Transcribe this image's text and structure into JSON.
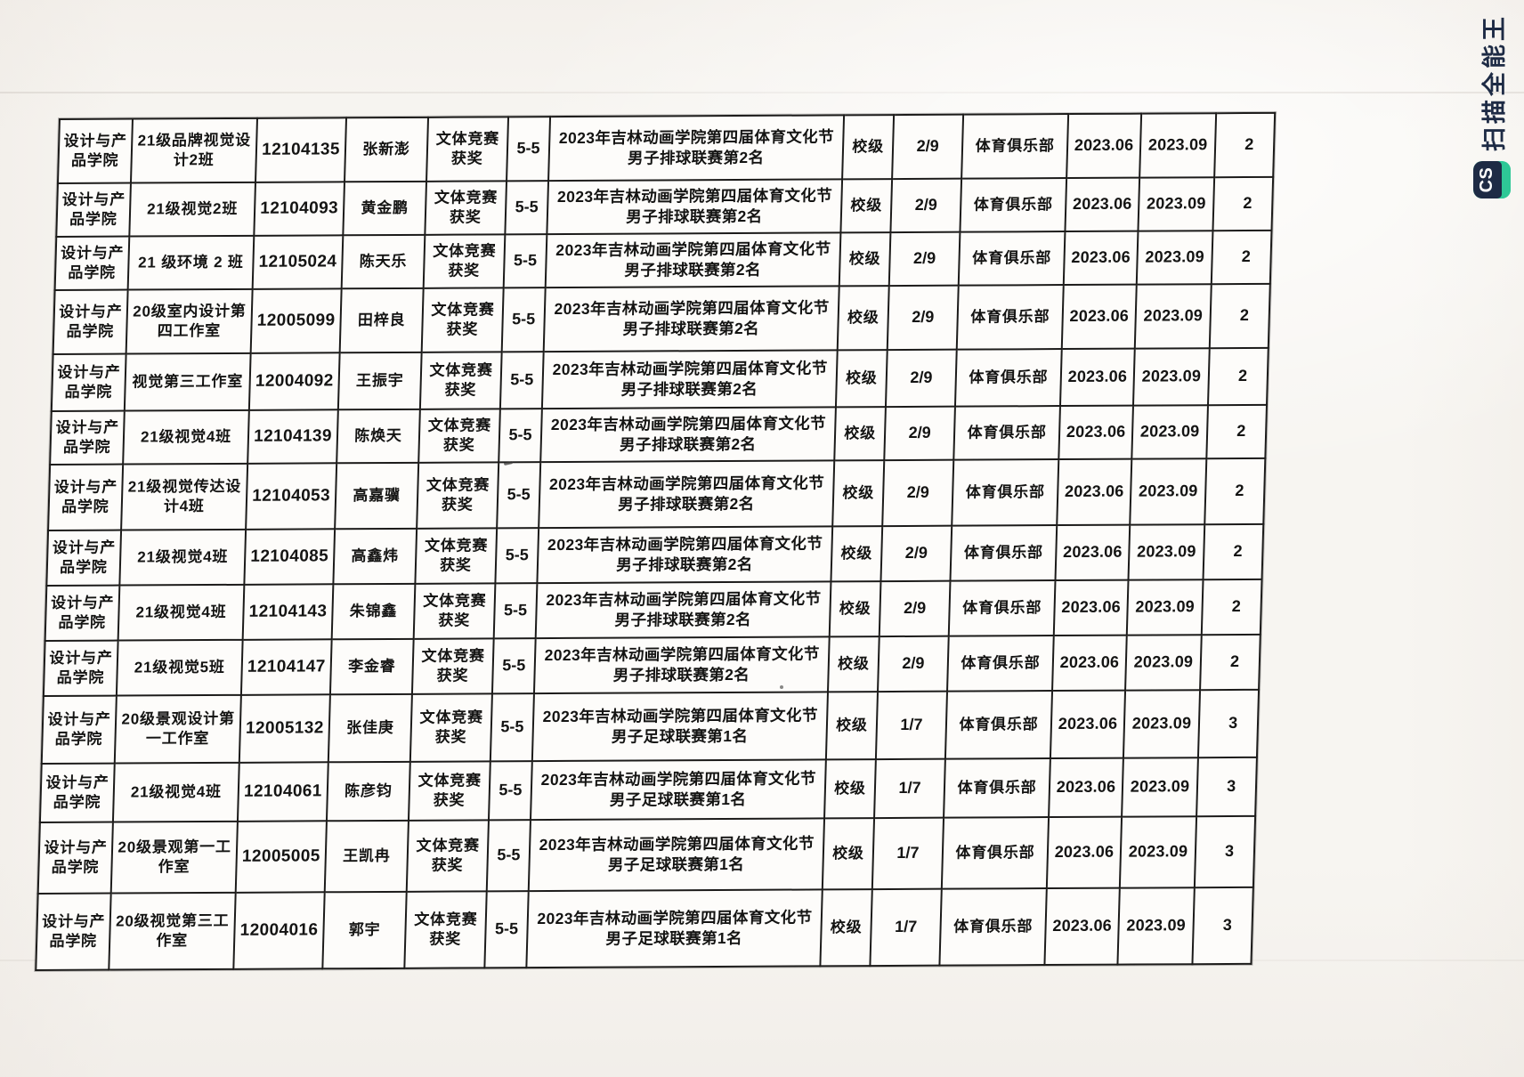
{
  "watermark": {
    "badge_text": "CS",
    "label": "扫描全能王",
    "badge_bg": "#1e2b45",
    "accent_color": "#2ec896",
    "label_color": "#1e2b45"
  },
  "table": {
    "field_order": [
      "college",
      "class_name",
      "student_id",
      "name",
      "award_type",
      "code",
      "award_title",
      "level",
      "rank",
      "organization",
      "start_date",
      "end_date",
      "points"
    ],
    "rows": [
      {
        "college": "设计与产品学院",
        "class_name": "21级品牌视觉设计2班",
        "student_id": "12104135",
        "name": "张新澎",
        "award_type": "文体竞赛获奖",
        "code": "5-5",
        "award_title": "2023年吉林动画学院第四届体育文化节男子排球联赛第2名",
        "level": "校级",
        "rank": "2/9",
        "organization": "体育俱乐部",
        "start_date": "2023.06",
        "end_date": "2023.09",
        "points": "2"
      },
      {
        "college": "设计与产品学院",
        "class_name": "21级视觉2班",
        "student_id": "12104093",
        "name": "黄金鹏",
        "award_type": "文体竞赛获奖",
        "code": "5-5",
        "award_title": "2023年吉林动画学院第四届体育文化节男子排球联赛第2名",
        "level": "校级",
        "rank": "2/9",
        "organization": "体育俱乐部",
        "start_date": "2023.06",
        "end_date": "2023.09",
        "points": "2"
      },
      {
        "college": "设计与产品学院",
        "class_name": "21 级环境 2 班",
        "student_id": "12105024",
        "name": "陈天乐",
        "award_type": "文体竞赛获奖",
        "code": "5-5",
        "award_title": "2023年吉林动画学院第四届体育文化节男子排球联赛第2名",
        "level": "校级",
        "rank": "2/9",
        "organization": "体育俱乐部",
        "start_date": "2023.06",
        "end_date": "2023.09",
        "points": "2"
      },
      {
        "college": "设计与产品学院",
        "class_name": "20级室内设计第四工作室",
        "student_id": "12005099",
        "name": "田梓良",
        "award_type": "文体竞赛获奖",
        "code": "5-5",
        "award_title": "2023年吉林动画学院第四届体育文化节男子排球联赛第2名",
        "level": "校级",
        "rank": "2/9",
        "organization": "体育俱乐部",
        "start_date": "2023.06",
        "end_date": "2023.09",
        "points": "2"
      },
      {
        "college": "设计与产品学院",
        "class_name": "视觉第三工作室",
        "student_id": "12004092",
        "name": "王振宇",
        "award_type": "文体竞赛获奖",
        "code": "5-5",
        "award_title": "2023年吉林动画学院第四届体育文化节男子排球联赛第2名",
        "level": "校级",
        "rank": "2/9",
        "organization": "体育俱乐部",
        "start_date": "2023.06",
        "end_date": "2023.09",
        "points": "2"
      },
      {
        "college": "设计与产品学院",
        "class_name": "21级视觉4班",
        "student_id": "12104139",
        "name": "陈焕天",
        "award_type": "文体竞赛获奖",
        "code": "5-5",
        "award_title": "2023年吉林动画学院第四届体育文化节男子排球联赛第2名",
        "level": "校级",
        "rank": "2/9",
        "organization": "体育俱乐部",
        "start_date": "2023.06",
        "end_date": "2023.09",
        "points": "2"
      },
      {
        "college": "设计与产品学院",
        "class_name": "21级视觉传达设计4班",
        "student_id": "12104053",
        "name": "高嘉骥",
        "award_type": "文体竞赛获奖",
        "code": "5-5",
        "award_title": "2023年吉林动画学院第四届体育文化节男子排球联赛第2名",
        "level": "校级",
        "rank": "2/9",
        "organization": "体育俱乐部",
        "start_date": "2023.06",
        "end_date": "2023.09",
        "points": "2"
      },
      {
        "college": "设计与产品学院",
        "class_name": "21级视觉4班",
        "student_id": "12104085",
        "name": "高鑫炜",
        "award_type": "文体竞赛获奖",
        "code": "5-5",
        "award_title": "2023年吉林动画学院第四届体育文化节男子排球联赛第2名",
        "level": "校级",
        "rank": "2/9",
        "organization": "体育俱乐部",
        "start_date": "2023.06",
        "end_date": "2023.09",
        "points": "2"
      },
      {
        "college": "设计与产品学院",
        "class_name": "21级视觉4班",
        "student_id": "12104143",
        "name": "朱锦鑫",
        "award_type": "文体竞赛获奖",
        "code": "5-5",
        "award_title": "2023年吉林动画学院第四届体育文化节男子排球联赛第2名",
        "level": "校级",
        "rank": "2/9",
        "organization": "体育俱乐部",
        "start_date": "2023.06",
        "end_date": "2023.09",
        "points": "2"
      },
      {
        "college": "设计与产品学院",
        "class_name": "21级视觉5班",
        "student_id": "12104147",
        "name": "李金睿",
        "award_type": "文体竞赛获奖",
        "code": "5-5",
        "award_title": "2023年吉林动画学院第四届体育文化节男子排球联赛第2名",
        "level": "校级",
        "rank": "2/9",
        "organization": "体育俱乐部",
        "start_date": "2023.06",
        "end_date": "2023.09",
        "points": "2"
      },
      {
        "college": "设计与产品学院",
        "class_name": "20级景观设计第一工作室",
        "student_id": "12005132",
        "name": "张佳庚",
        "award_type": "文体竞赛获奖",
        "code": "5-5",
        "award_title": "2023年吉林动画学院第四届体育文化节男子足球联赛第1名",
        "level": "校级",
        "rank": "1/7",
        "organization": "体育俱乐部",
        "start_date": "2023.06",
        "end_date": "2023.09",
        "points": "3"
      },
      {
        "college": "设计与产品学院",
        "class_name": "21级视觉4班",
        "student_id": "12104061",
        "name": "陈彦钧",
        "award_type": "文体竞赛获奖",
        "code": "5-5",
        "award_title": "2023年吉林动画学院第四届体育文化节男子足球联赛第1名",
        "level": "校级",
        "rank": "1/7",
        "organization": "体育俱乐部",
        "start_date": "2023.06",
        "end_date": "2023.09",
        "points": "3"
      },
      {
        "college": "设计与产品学院",
        "class_name": "20级景观第一工作室",
        "student_id": "12005005",
        "name": "王凯冉",
        "award_type": "文体竞赛获奖",
        "code": "5-5",
        "award_title": "2023年吉林动画学院第四届体育文化节男子足球联赛第1名",
        "level": "校级",
        "rank": "1/7",
        "organization": "体育俱乐部",
        "start_date": "2023.06",
        "end_date": "2023.09",
        "points": "3"
      },
      {
        "college": "设计与产品学院",
        "class_name": "20级视觉第三工作室",
        "student_id": "12004016",
        "name": "郭宇",
        "award_type": "文体竞赛获奖",
        "code": "5-5",
        "award_title": "2023年吉林动画学院第四届体育文化节男子足球联赛第1名",
        "level": "校级",
        "rank": "1/7",
        "organization": "体育俱乐部",
        "start_date": "2023.06",
        "end_date": "2023.09",
        "points": "3"
      }
    ]
  }
}
